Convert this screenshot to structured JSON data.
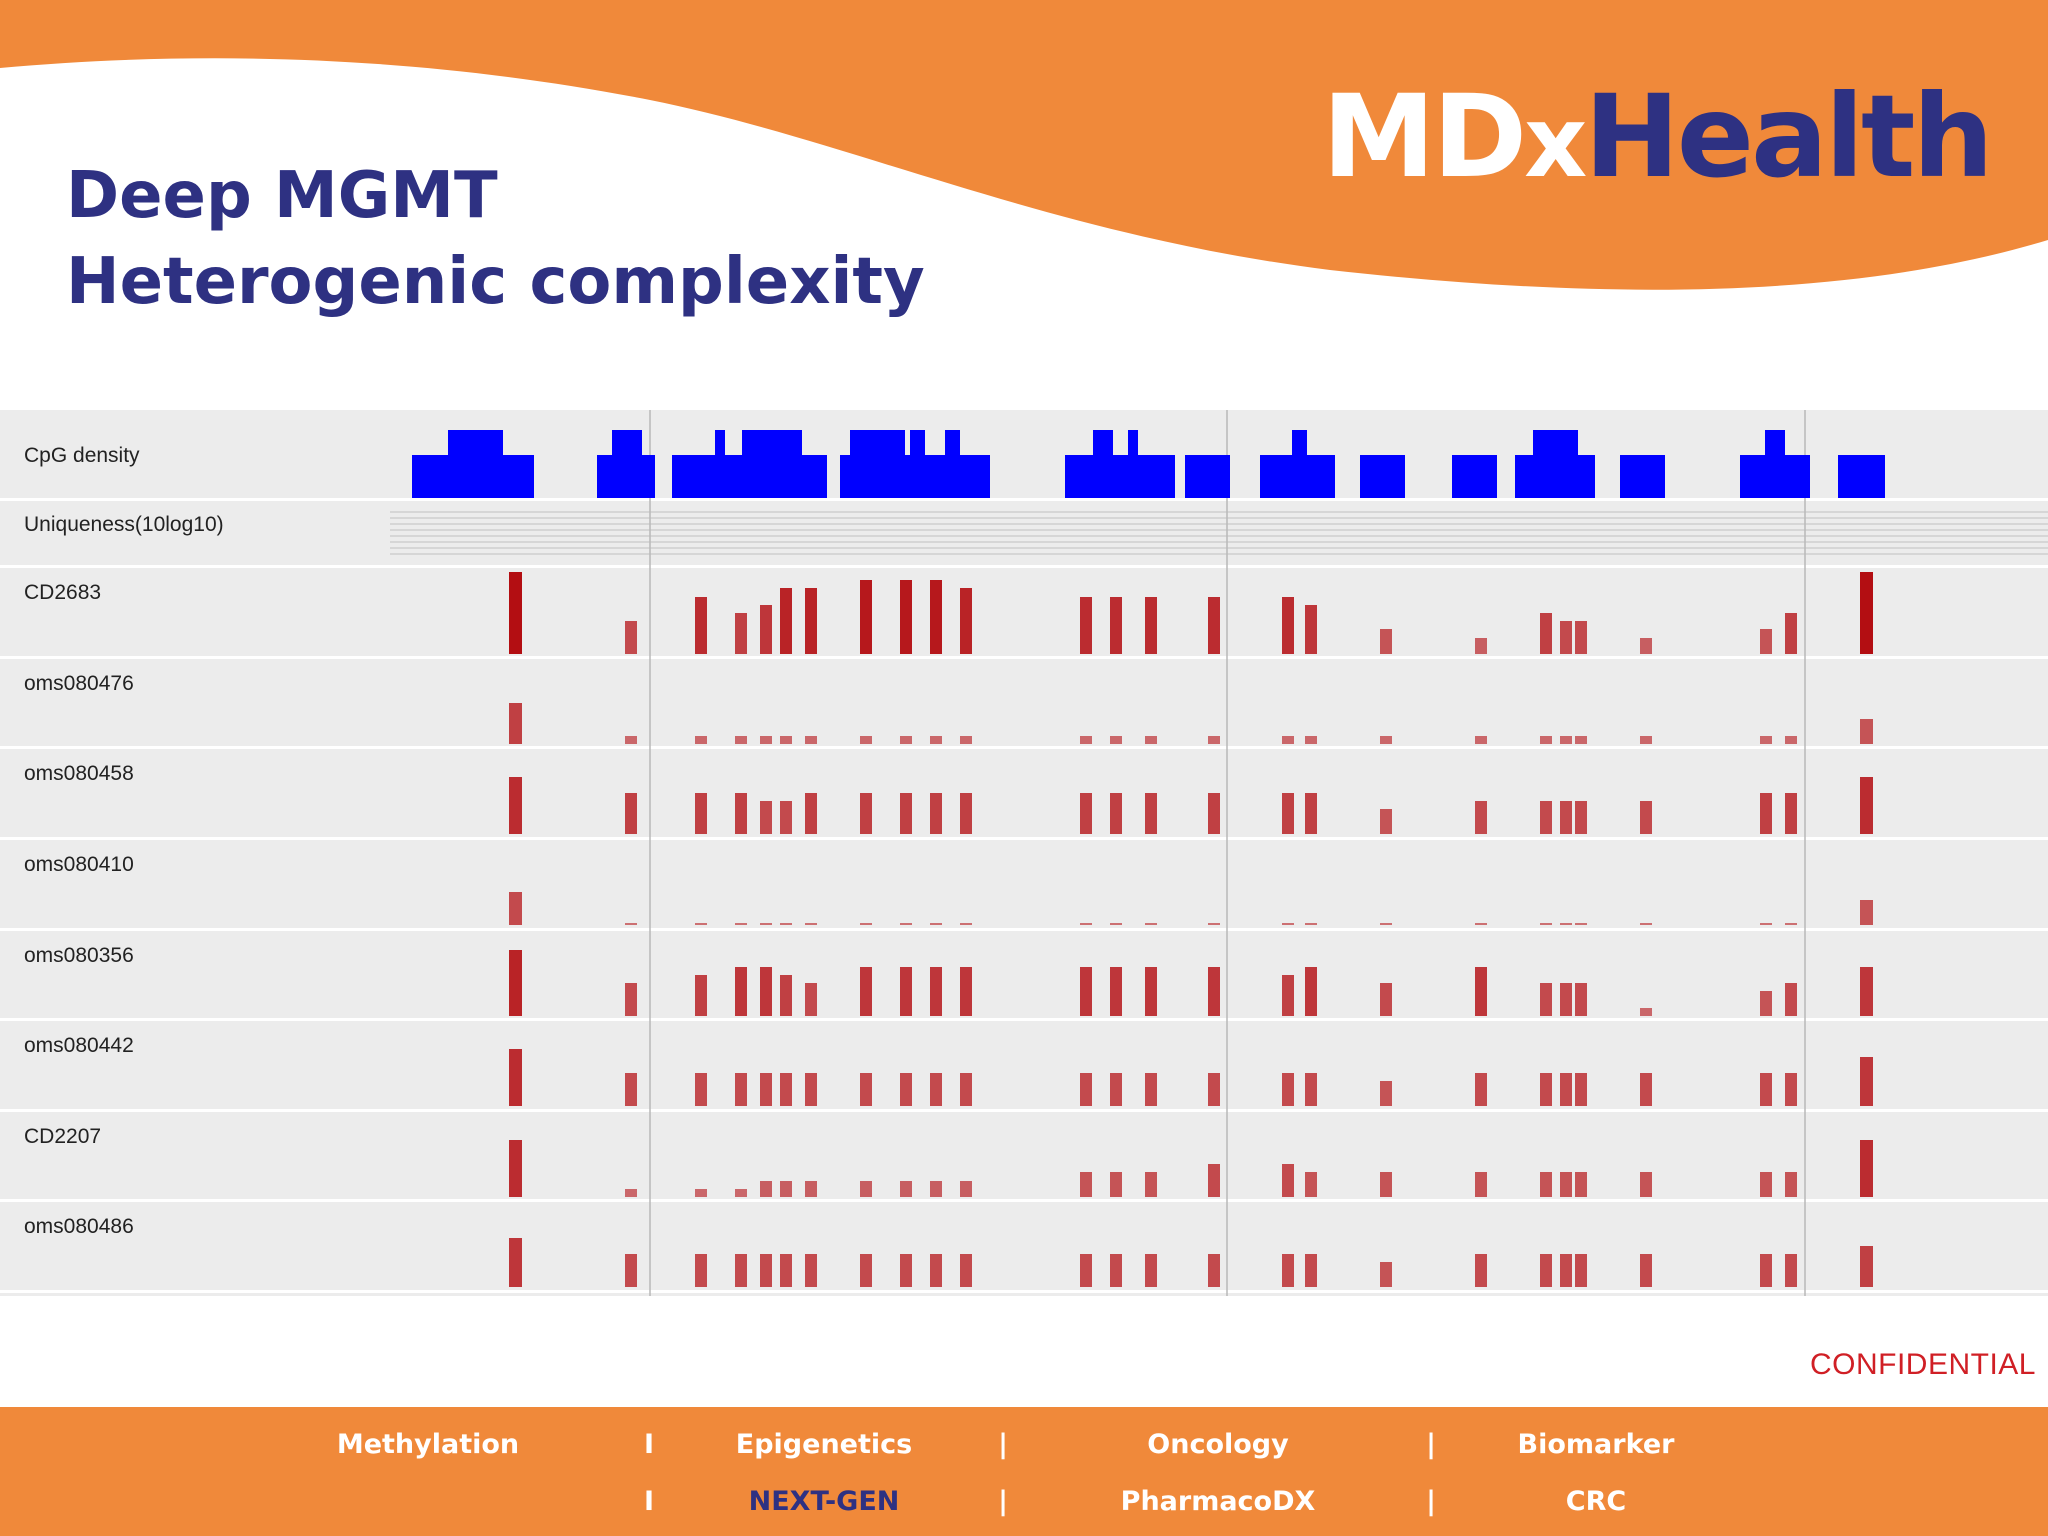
{
  "slide": {
    "title_line1": "Deep MGMT",
    "title_line2": "Heterogenic complexity"
  },
  "logo": {
    "part1": "MD",
    "part2": "x",
    "part3": "Health",
    "colors": {
      "primary": "#2e3182",
      "accent": "#f0893a"
    }
  },
  "tracks": {
    "cpg_label": "CpG density",
    "uniqueness_label": "Uniqueness(10log10)",
    "samples": [
      "CD2683",
      "oms080476",
      "oms080458",
      "oms080410",
      "oms080356",
      "oms080442",
      "CD2207",
      "oms080486"
    ]
  },
  "confidential": "CONFIDENTIAL",
  "footer": {
    "row1": [
      "Methylation",
      "Epigenetics",
      "Oncology",
      "Biomarker"
    ],
    "row2": [
      "NEXT-GEN",
      "PharmacoDX",
      "CRC"
    ],
    "separator_row1_first": "I",
    "separator_row2_first": "I",
    "separator": "|"
  },
  "colors": {
    "title": "#2e3182",
    "orange": "#f0893a",
    "cpg_blue": "#0000ff",
    "methylation_red": "#b30e12",
    "confidential": "#d01f25"
  }
}
